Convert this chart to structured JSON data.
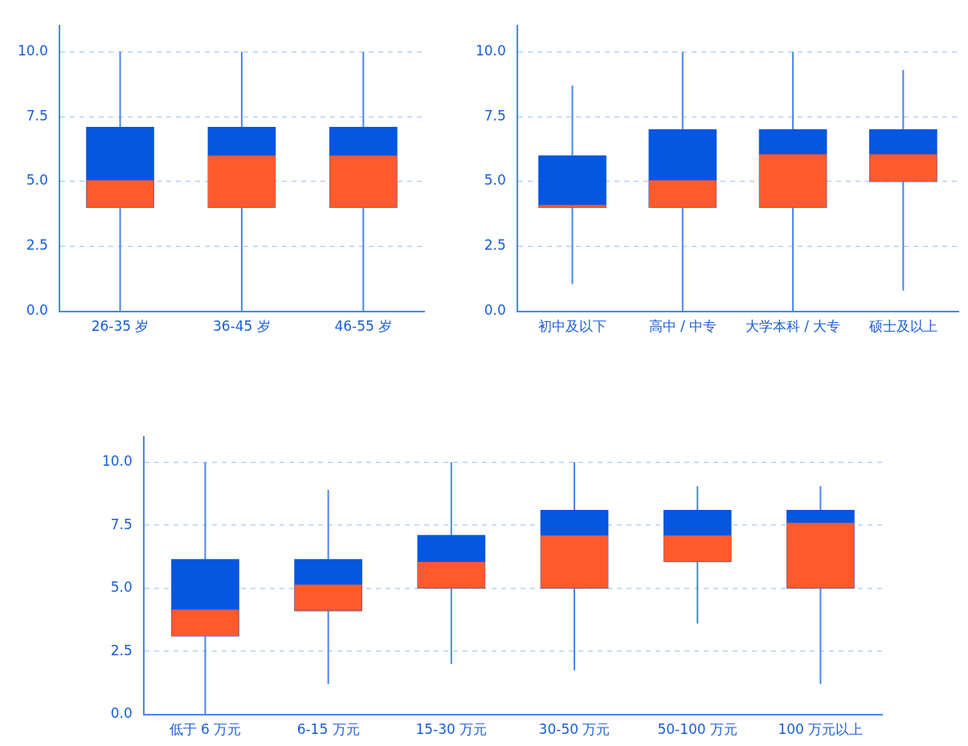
{
  "chart_data": [
    {
      "type": "box",
      "categories": [
        "26-35 岁",
        "36-45 岁",
        "46-55 岁"
      ],
      "color": "#0556e0",
      "boxes": [
        {
          "low": 0,
          "q1": 4,
          "median": 5.05,
          "q3": 7.1,
          "high": 10
        },
        {
          "low": 0,
          "q1": 4,
          "median": 6,
          "q3": 7.1,
          "high": 10
        },
        {
          "low": 0,
          "q1": 4,
          "median": 6,
          "q3": 7.1,
          "high": 10
        }
      ],
      "ylim": [
        0,
        11
      ],
      "yticks": [
        {
          "value": 0,
          "label": "0.0"
        },
        {
          "value": 2.5,
          "label": "2.5"
        },
        {
          "value": 5,
          "label": "5.0"
        },
        {
          "value": 7.5,
          "label": "7.5"
        },
        {
          "value": 10,
          "label": "10.0"
        }
      ],
      "grid": "y",
      "legend": false
    },
    {
      "type": "box",
      "categories": [
        "初中及以下",
        "高中 / 中专",
        "大学本科 / 大专",
        "硕士及以上"
      ],
      "color": "#0556e0",
      "boxes": [
        {
          "low": 1.05,
          "q1": 4,
          "median": 4.1,
          "q3": 6,
          "high": 8.7
        },
        {
          "low": 0,
          "q1": 4,
          "median": 5.05,
          "q3": 7,
          "high": 10
        },
        {
          "low": 0,
          "q1": 4,
          "median": 6.05,
          "q3": 7,
          "high": 10
        },
        {
          "low": 0.8,
          "q1": 5,
          "median": 6.05,
          "q3": 7,
          "high": 9.3
        }
      ],
      "ylim": [
        0,
        11
      ],
      "yticks": [
        {
          "value": 0,
          "label": "0.0"
        },
        {
          "value": 2.5,
          "label": "2.5"
        },
        {
          "value": 5,
          "label": "5.0"
        },
        {
          "value": 7.5,
          "label": "7.5"
        },
        {
          "value": 10,
          "label": "10.0"
        }
      ],
      "grid": "y",
      "legend": false
    },
    {
      "type": "box",
      "categories": [
        "低于 6 万元",
        "6-15 万元",
        "15-30 万元",
        "30-50 万元",
        "50-100 万元",
        "100 万元以上"
      ],
      "color": "#0556e0",
      "boxes": [
        {
          "low": 0,
          "q1": 3.1,
          "median": 4.15,
          "q3": 6.15,
          "high": 10
        },
        {
          "low": 1.2,
          "q1": 4.1,
          "median": 5.15,
          "q3": 6.15,
          "high": 8.9
        },
        {
          "low": 2,
          "q1": 5,
          "median": 6.05,
          "q3": 7.1,
          "high": 10
        },
        {
          "low": 1.75,
          "q1": 5,
          "median": 7.1,
          "q3": 8.1,
          "high": 10
        },
        {
          "low": 3.6,
          "q1": 6.05,
          "median": 7.1,
          "q3": 8.1,
          "high": 9.05
        },
        {
          "low": 1.2,
          "q1": 5,
          "median": 7.6,
          "q3": 8.1,
          "high": 9.05
        }
      ],
      "ylim": [
        0,
        11
      ],
      "yticks": [
        {
          "value": 0,
          "label": "0.0"
        },
        {
          "value": 2.5,
          "label": "2.5"
        },
        {
          "value": 5,
          "label": "5.0"
        },
        {
          "value": 7.5,
          "label": "7.5"
        },
        {
          "value": 10,
          "label": "10.0"
        }
      ],
      "grid": "y",
      "legend": false
    }
  ]
}
